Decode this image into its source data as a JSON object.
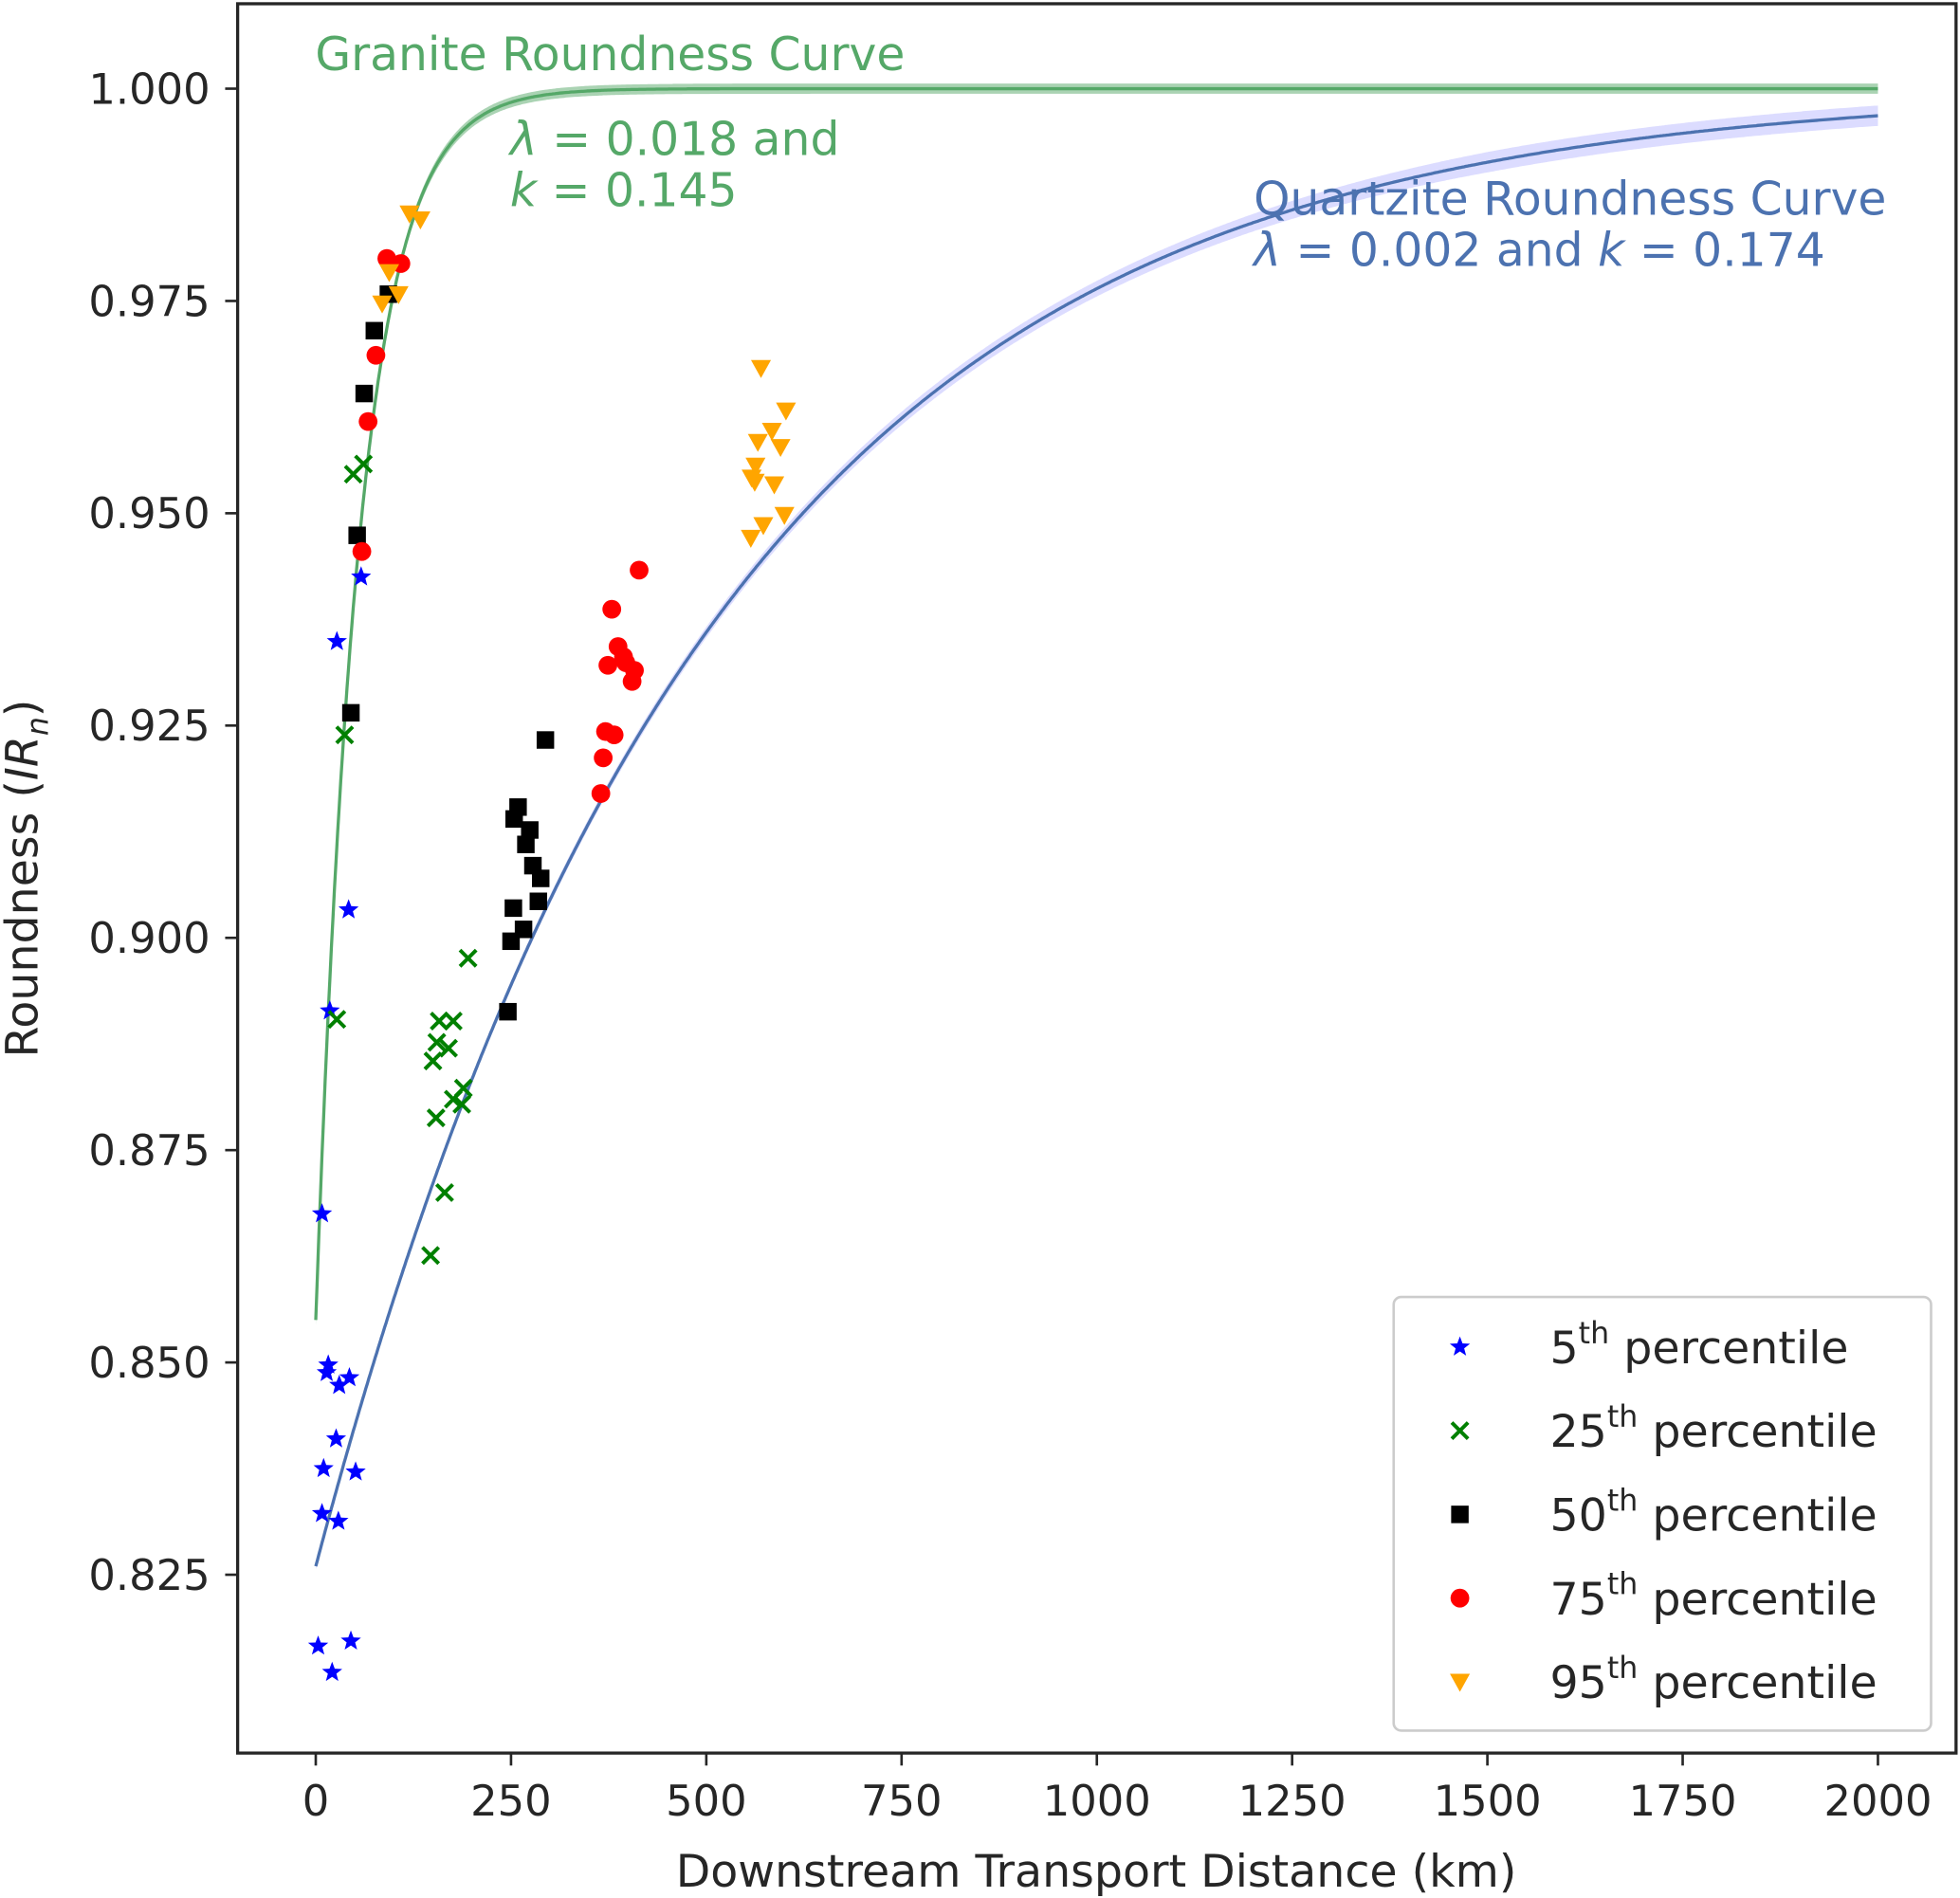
{
  "chart_data": {
    "type": "scatter",
    "xlabel": "Downstream Transport Distance (km)",
    "ylabel": {
      "prefix": "Roundness (",
      "italic": "IR",
      "sub": "n",
      "suffix": ")"
    },
    "xlim": [
      -100,
      2100
    ],
    "ylim": [
      0.804,
      1.01
    ],
    "xticks": [
      0,
      250,
      500,
      750,
      1000,
      1250,
      1500,
      1750,
      2000
    ],
    "xtick_labels": [
      "0",
      "250",
      "500",
      "750",
      "1000",
      "1250",
      "1500",
      "1750",
      "2000"
    ],
    "yticks": [
      0.825,
      0.85,
      0.875,
      0.9,
      0.925,
      0.95,
      0.975,
      1.0
    ],
    "ytick_labels": [
      "0.825",
      "0.850",
      "0.875",
      "0.900",
      "0.925",
      "0.950",
      "0.975",
      "1.000"
    ],
    "grid": false,
    "legend_placement": "lower-right",
    "curves": [
      {
        "name": "Granite Roundness Curve",
        "lambda": 0.018,
        "k": 0.145,
        "color": "#55a868",
        "x_range": [
          0,
          2000
        ],
        "label": {
          "title": "Granite Roundness Curve",
          "lambda_sym": "λ",
          "lambda_text": " = 0.018 and",
          "k_sym": "k",
          "k_text": " = 0.145"
        }
      },
      {
        "name": "Quartzite Roundness Curve",
        "lambda": 0.002,
        "k": 0.174,
        "color": "#4c72b0",
        "x_range": [
          0,
          2000
        ],
        "label": {
          "title": "Quartzite Roundness Curve",
          "lambda_sym": "λ",
          "lambda_text": " = 0.002 and ",
          "k_sym": "k",
          "k_text": " = 0.174"
        }
      }
    ],
    "series": [
      {
        "name": "5th percentile",
        "ordinal": "5",
        "sup": "th",
        "label": " percentile",
        "marker": "star",
        "color": "#0000ff",
        "points": [
          [
            8,
            0.8675
          ],
          [
            27,
            0.9349
          ],
          [
            58,
            0.9425
          ],
          [
            42,
            0.9033
          ],
          [
            18,
            0.8914
          ],
          [
            16,
            0.8497
          ],
          [
            14,
            0.8488
          ],
          [
            43,
            0.8482
          ],
          [
            30,
            0.8473
          ],
          [
            26,
            0.841
          ],
          [
            10,
            0.8375
          ],
          [
            51,
            0.8371
          ],
          [
            8,
            0.8322
          ],
          [
            29,
            0.8313
          ],
          [
            3,
            0.8166
          ],
          [
            45,
            0.8172
          ],
          [
            21,
            0.8135
          ]
        ]
      },
      {
        "name": "25th percentile",
        "ordinal": "25",
        "sup": "th",
        "label": " percentile",
        "marker": "x",
        "color": "#008000",
        "points": [
          [
            48,
            0.9546
          ],
          [
            61,
            0.9558
          ],
          [
            37,
            0.9239
          ],
          [
            27,
            0.8904
          ],
          [
            195,
            0.8976
          ],
          [
            158,
            0.8902
          ],
          [
            176,
            0.8902
          ],
          [
            155,
            0.8877
          ],
          [
            170,
            0.887
          ],
          [
            150,
            0.8855
          ],
          [
            189,
            0.8823
          ],
          [
            176,
            0.881
          ],
          [
            187,
            0.8804
          ],
          [
            154,
            0.8788
          ],
          [
            165,
            0.87
          ],
          [
            147,
            0.8626
          ]
        ]
      },
      {
        "name": "50th percentile",
        "ordinal": "50",
        "sup": "th",
        "label": " percentile",
        "marker": "square",
        "color": "#000000",
        "points": [
          [
            75,
            0.9715
          ],
          [
            93,
            0.9758
          ],
          [
            62,
            0.9641
          ],
          [
            53,
            0.9474
          ],
          [
            45,
            0.9265
          ],
          [
            294,
            0.9233
          ],
          [
            259,
            0.9154
          ],
          [
            254,
            0.914
          ],
          [
            274,
            0.9127
          ],
          [
            269,
            0.911
          ],
          [
            278,
            0.9085
          ],
          [
            288,
            0.907
          ],
          [
            285,
            0.9043
          ],
          [
            253,
            0.9035
          ],
          [
            266,
            0.901
          ],
          [
            250,
            0.8996
          ],
          [
            246,
            0.8913
          ]
        ]
      },
      {
        "name": "75th percentile",
        "ordinal": "75",
        "sup": "th",
        "label": " percentile",
        "marker": "circle",
        "color": "#ff0000",
        "points": [
          [
            91,
            0.98
          ],
          [
            109,
            0.9794
          ],
          [
            77,
            0.9686
          ],
          [
            67,
            0.9608
          ],
          [
            59,
            0.9455
          ],
          [
            414,
            0.9433
          ],
          [
            379,
            0.9387
          ],
          [
            387,
            0.9343
          ],
          [
            394,
            0.9331
          ],
          [
            374,
            0.9321
          ],
          [
            397,
            0.9324
          ],
          [
            408,
            0.9315
          ],
          [
            405,
            0.9302
          ],
          [
            371,
            0.9243
          ],
          [
            382,
            0.9239
          ],
          [
            368,
            0.9212
          ],
          [
            365,
            0.917
          ]
        ]
      },
      {
        "name": "95th percentile",
        "ordinal": "95",
        "sup": "th",
        "label": " percentile",
        "marker": "triangle-down",
        "color": "#ffa500",
        "points": [
          [
            120,
            0.9853
          ],
          [
            134,
            0.9846
          ],
          [
            94,
            0.9784
          ],
          [
            106,
            0.9758
          ],
          [
            85,
            0.9747
          ],
          [
            570,
            0.9671
          ],
          [
            602,
            0.9621
          ],
          [
            566,
            0.9584
          ],
          [
            584,
            0.9597
          ],
          [
            595,
            0.9578
          ],
          [
            563,
            0.9556
          ],
          [
            558,
            0.9542
          ],
          [
            587,
            0.9534
          ],
          [
            562,
            0.9537
          ],
          [
            600,
            0.9498
          ],
          [
            573,
            0.9486
          ],
          [
            557,
            0.9471
          ]
        ]
      }
    ]
  }
}
